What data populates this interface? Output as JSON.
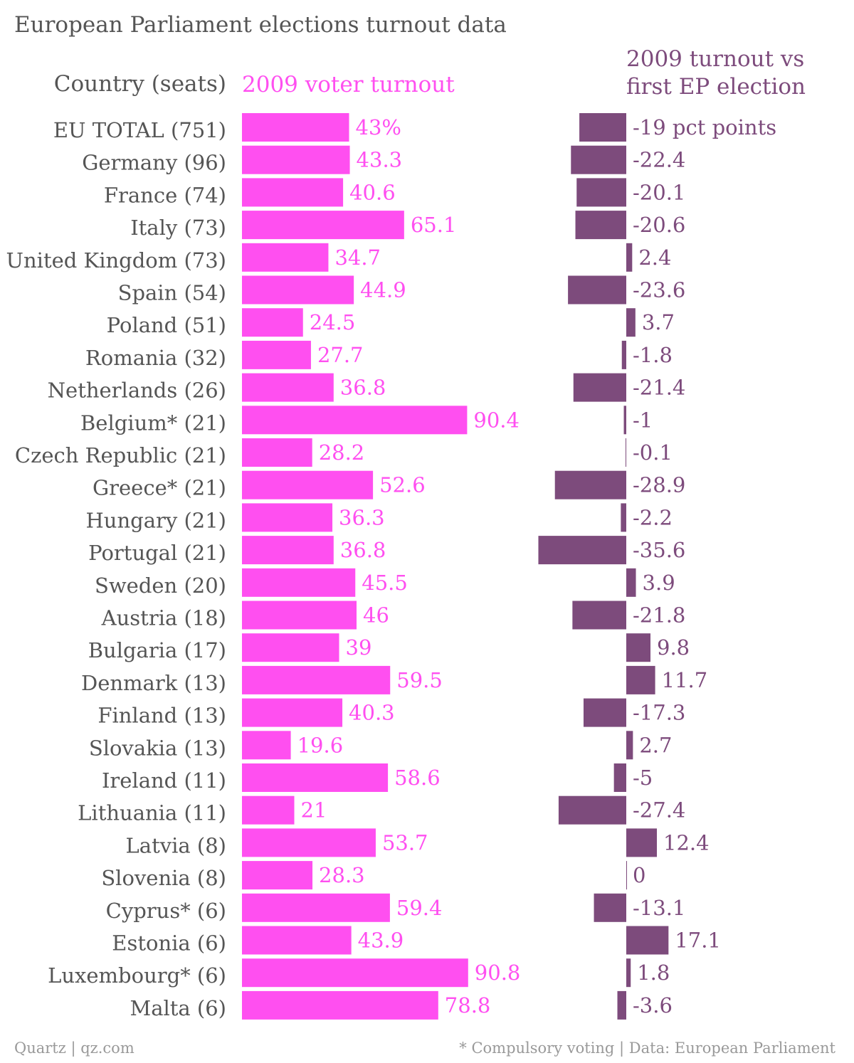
{
  "title": "European Parliament elections turnout data",
  "colors": {
    "turnout": "#ff4ff0",
    "change": "#7d4b7c",
    "text": "#555555",
    "footer": "#999999"
  },
  "footer": {
    "left": "Quartz | qz.com",
    "right": "* Compulsory voting | Data: European Parliament"
  },
  "chart_data": {
    "type": "bar",
    "orientation": "horizontal",
    "title": "European Parliament elections turnout data",
    "category_header": "Country (seats)",
    "categories": [
      "EU TOTAL (751)",
      "Germany (96)",
      "France (74)",
      "Italy (73)",
      "United Kingdom (73)",
      "Spain (54)",
      "Poland (51)",
      "Romania (32)",
      "Netherlands (26)",
      "Belgium* (21)",
      "Czech Republic (21)",
      "Greece* (21)",
      "Hungary (21)",
      "Portugal (21)",
      "Sweden (20)",
      "Austria (18)",
      "Bulgaria (17)",
      "Denmark (13)",
      "Finland (13)",
      "Slovakia (13)",
      "Ireland (11)",
      "Lithuania (11)",
      "Latvia (8)",
      "Slovenia (8)",
      "Cyprus* (6)",
      "Estonia (6)",
      "Luxembourg* (6)",
      "Malta (6)"
    ],
    "series": [
      {
        "name": "2009 voter turnout",
        "values": [
          43,
          43.3,
          40.6,
          65.1,
          34.7,
          44.9,
          24.5,
          27.7,
          36.8,
          90.4,
          28.2,
          52.6,
          36.3,
          36.8,
          45.5,
          46,
          39,
          59.5,
          40.3,
          19.6,
          58.6,
          21,
          53.7,
          28.3,
          59.4,
          43.9,
          90.8,
          78.8
        ],
        "labels": [
          "43%",
          "43.3",
          "40.6",
          "65.1",
          "34.7",
          "44.9",
          "24.5",
          "27.7",
          "36.8",
          "90.4",
          "28.2",
          "52.6",
          "36.3",
          "36.8",
          "45.5",
          "46",
          "39",
          "59.5",
          "40.3",
          "19.6",
          "58.6",
          "21",
          "53.7",
          "28.3",
          "59.4",
          "43.9",
          "90.8",
          "78.8"
        ]
      },
      {
        "name_lines": [
          "2009 turnout vs",
          "first EP election"
        ],
        "values": [
          -19,
          -22.4,
          -20.1,
          -20.6,
          2.4,
          -23.6,
          3.7,
          -1.8,
          -21.4,
          -1,
          -0.1,
          -28.9,
          -2.2,
          -35.6,
          3.9,
          -21.8,
          9.8,
          11.7,
          -17.3,
          2.7,
          -5,
          -27.4,
          12.4,
          0,
          -13.1,
          17.1,
          1.8,
          -3.6
        ],
        "labels": [
          "-19 pct points",
          "-22.4",
          "-20.1",
          "-20.6",
          "2.4",
          "-23.6",
          "3.7",
          "-1.8",
          "-21.4",
          "-1",
          "-0.1",
          "-28.9",
          "-2.2",
          "-35.6",
          "3.9",
          "-21.8",
          "9.8",
          "11.7",
          "-17.3",
          "2.7",
          "-5",
          "-27.4",
          "12.4",
          "0",
          "-13.1",
          "17.1",
          "1.8",
          "-3.6"
        ]
      }
    ],
    "xlim_turnout": [
      0,
      100
    ],
    "xlim_change": [
      -36,
      18
    ],
    "grid": false,
    "legend": "none"
  }
}
